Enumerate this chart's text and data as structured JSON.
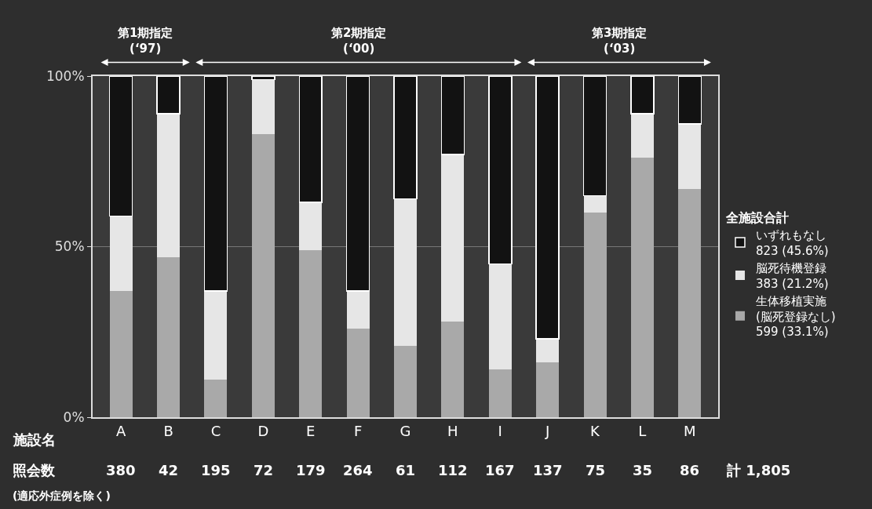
{
  "chart_data": {
    "type": "bar",
    "stacked": true,
    "xlabel": "施設名",
    "categories": [
      "A",
      "B",
      "C",
      "D",
      "E",
      "F",
      "G",
      "H",
      "I",
      "J",
      "K",
      "L",
      "M"
    ],
    "series": [
      {
        "name": "生体移植実施\n(脳死登録なし)\n599 (33.1%)",
        "color": "#a9a9a9",
        "values": [
          37,
          47,
          11,
          83,
          49,
          26,
          21,
          28,
          14,
          16,
          60,
          76,
          67
        ]
      },
      {
        "name": "脳死待機登録\n383 (21.2%)",
        "color": "#e6e6e6",
        "values": [
          22,
          42,
          26,
          16,
          14,
          11,
          43,
          49,
          31,
          7,
          5,
          13,
          19
        ]
      },
      {
        "name": "いずれもなし\n823 (45.6%)",
        "color": "#121212",
        "values": [
          41,
          11,
          63,
          1,
          37,
          63,
          36,
          23,
          55,
          77,
          35,
          11,
          14
        ]
      }
    ],
    "ylim": [
      0,
      100
    ],
    "yticks": [
      {
        "value": 0,
        "label": "0%"
      },
      {
        "value": 50,
        "label": "50%"
      },
      {
        "value": 100,
        "label": "100%"
      }
    ],
    "grid": "y",
    "legend": "right",
    "legend_title": "全施設合計",
    "annotations": [
      "照会数",
      "計 1,805",
      "(適応外症例を除く)",
      "第1期指定\n(‘97)",
      "第2期指定\n(‘00)",
      "第3期指定\n(‘03)",
      "380",
      "42",
      "195",
      "72",
      "179",
      "264",
      "61",
      "112",
      "167",
      "137",
      "75",
      "35",
      "86"
    ]
  }
}
